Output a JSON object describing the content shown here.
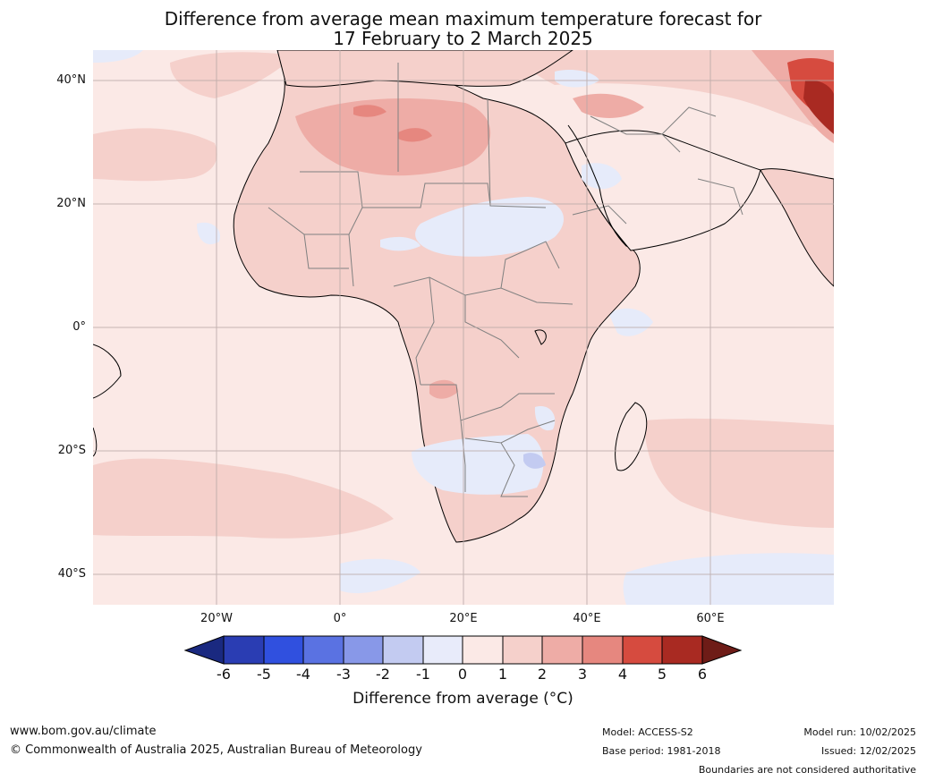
{
  "title": {
    "line1": "Difference from average mean maximum temperature forecast for",
    "line2": "17 February to 2 March 2025"
  },
  "map": {
    "region": "Africa",
    "lat_labels": [
      "40°N",
      "20°N",
      "0°",
      "20°S",
      "40°S"
    ],
    "lon_labels": [
      "20°W",
      "0°",
      "20°E",
      "40°E",
      "60°E"
    ],
    "colors": {
      "ocean_base": "#fbe9e6",
      "land_warm": "#f5d0cb",
      "warm_2_3": "#eeaca6",
      "warm_3_4": "#e6877f",
      "warm_4_5": "#d64b3f",
      "warm_5_6": "#a92a22",
      "cool_0_-1": "#e6ebfa",
      "cool_-1_-2": "#c3cbf1",
      "coast": "#000000",
      "border": "#808080"
    }
  },
  "colorbar": {
    "title": "Difference from average (°C)",
    "ticks": [
      "-6",
      "-5",
      "-4",
      "-3",
      "-2",
      "-1",
      "0",
      "1",
      "2",
      "3",
      "4",
      "5",
      "6"
    ],
    "colors": [
      "#1a2980",
      "#2a3db3",
      "#3050df",
      "#5a72e2",
      "#8898e8",
      "#c3cbf1",
      "#e8ebfa",
      "#fbe9e6",
      "#f5d0cb",
      "#eeaca6",
      "#e6877f",
      "#d64b3f",
      "#a92a22",
      "#6e1c17"
    ]
  },
  "footer": {
    "website": "www.bom.gov.au/climate",
    "copyright": "© Commonwealth of Australia 2025, Australian Bureau of Meteorology",
    "model": "Model: ACCESS-S2",
    "base_period": "Base period: 1981-2018",
    "model_run": "Model run: 10/02/2025",
    "issued": "Issued: 12/02/2025",
    "disclaimer": "Boundaries are not considered authoritative"
  }
}
